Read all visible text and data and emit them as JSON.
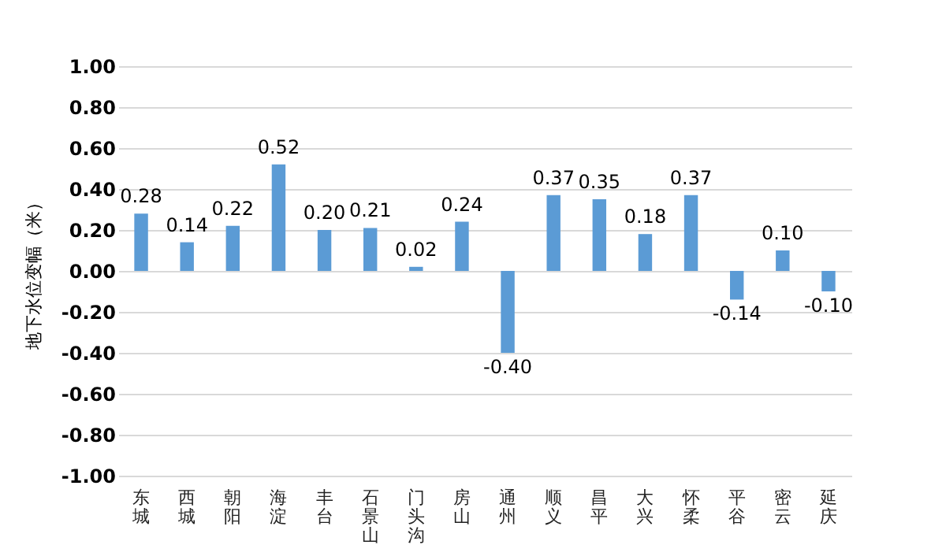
{
  "chart_data": {
    "type": "bar",
    "ylabel": "地下水位变幅（米）",
    "categories": [
      "东城",
      "西城",
      "朝阳",
      "海淀",
      "丰台",
      "石景山",
      "门头沟",
      "房山",
      "通州",
      "顺义",
      "昌平",
      "大兴",
      "怀柔",
      "平谷",
      "密云",
      "延庆"
    ],
    "values": [
      0.28,
      0.14,
      0.22,
      0.52,
      0.2,
      0.21,
      0.02,
      0.24,
      -0.4,
      0.37,
      0.35,
      0.18,
      0.37,
      -0.14,
      0.1,
      -0.1
    ],
    "color": "#5b9bd5",
    "ylim": [
      -1,
      1
    ],
    "yticks": [
      {
        "value": -1,
        "label": "-1.00"
      },
      {
        "value": -0.8,
        "label": "-0.80"
      },
      {
        "value": -0.6,
        "label": "-0.60"
      },
      {
        "value": -0.4,
        "label": "-0.40"
      },
      {
        "value": -0.2,
        "label": "-0.20"
      },
      {
        "value": 0,
        "label": "0.00"
      },
      {
        "value": 0.2,
        "label": "0.20"
      },
      {
        "value": 0.4,
        "label": "0.40"
      },
      {
        "value": 0.6,
        "label": "0.60"
      },
      {
        "value": 0.8,
        "label": "0.80"
      },
      {
        "value": 1,
        "label": "1.00"
      }
    ],
    "value_labels": [
      "0.28",
      "0.14",
      "0.22",
      "0.52",
      "0.20",
      "0.21",
      "0.02",
      "0.24",
      "-0.40",
      "0.37",
      "0.35",
      "0.18",
      "0.37",
      "-0.14",
      "0.10",
      "-0.10"
    ],
    "grid": "y"
  }
}
